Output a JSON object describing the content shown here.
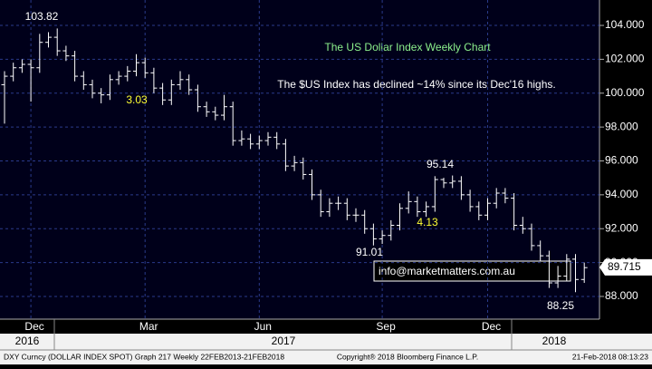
{
  "chart_data": {
    "type": "ohlc",
    "title": "The US Dollar Index Weekly Chart",
    "subtitle": "The $US Index has declined ~14% since its Dec'16 highs.",
    "categories": [
      null,
      null,
      null,
      "Dec",
      null,
      null,
      null,
      null,
      null,
      null,
      null,
      null,
      null,
      null,
      null,
      null,
      "Mar",
      null,
      null,
      null,
      null,
      null,
      null,
      null,
      null,
      null,
      null,
      null,
      null,
      "Jun",
      null,
      null,
      null,
      null,
      null,
      null,
      null,
      null,
      null,
      null,
      null,
      null,
      null,
      "Sep",
      null,
      null,
      null,
      null,
      null,
      null,
      null,
      null,
      null,
      null,
      null,
      "Dec",
      null,
      null,
      null,
      null,
      null,
      null,
      null,
      null,
      null,
      null,
      null
    ],
    "years": [
      "2016",
      "2017",
      "2018"
    ],
    "open": [
      100.5,
      101.0,
      101.5,
      101.7,
      101.5,
      103.0,
      103.3,
      102.5,
      102.2,
      101.0,
      100.5,
      100.0,
      99.9,
      100.8,
      101.0,
      101.3,
      101.8,
      101.2,
      100.3,
      99.6,
      100.5,
      100.8,
      100.2,
      99.2,
      98.9,
      98.7,
      99.2,
      97.2,
      97.3,
      97.0,
      97.2,
      97.4,
      97.0,
      95.7,
      95.9,
      95.2,
      94.0,
      93.0,
      93.5,
      93.5,
      92.8,
      92.8,
      92.0,
      91.4,
      91.6,
      92.2,
      93.2,
      93.6,
      93.0,
      93.3,
      94.9,
      94.7,
      94.8,
      94.0,
      93.3,
      92.8,
      93.5,
      94.1,
      93.8,
      92.2,
      92.0,
      91.0,
      90.4,
      88.8,
      89.2,
      90.2,
      89.0
    ],
    "high": [
      101.3,
      101.8,
      102.0,
      102.0,
      103.5,
      103.6,
      103.82,
      102.8,
      102.5,
      101.3,
      100.8,
      100.3,
      101.1,
      101.3,
      101.6,
      102.3,
      102.1,
      101.5,
      100.6,
      100.8,
      101.3,
      101.1,
      100.5,
      99.5,
      99.2,
      99.9,
      99.5,
      97.8,
      97.6,
      97.5,
      97.7,
      97.7,
      97.3,
      96.3,
      96.2,
      95.5,
      94.3,
      93.8,
      93.9,
      93.8,
      93.2,
      93.1,
      92.3,
      91.9,
      92.5,
      93.5,
      94.2,
      93.9,
      93.6,
      95.1,
      95.0,
      95.14,
      95.1,
      94.3,
      93.6,
      93.8,
      94.4,
      94.4,
      94.1,
      92.7,
      92.3,
      91.3,
      90.7,
      89.8,
      90.5,
      90.5,
      90.0
    ],
    "low": [
      98.2,
      100.7,
      101.2,
      99.5,
      101.2,
      102.7,
      102.2,
      101.9,
      100.7,
      100.2,
      99.7,
      99.4,
      99.6,
      100.5,
      100.7,
      101.0,
      100.9,
      100.0,
      99.3,
      99.3,
      100.2,
      99.9,
      98.9,
      98.6,
      98.4,
      98.4,
      96.9,
      96.9,
      96.7,
      96.7,
      96.9,
      96.7,
      95.4,
      95.4,
      94.9,
      93.7,
      92.7,
      92.7,
      93.1,
      92.5,
      92.4,
      91.7,
      91.01,
      91.1,
      91.3,
      91.9,
      92.9,
      92.7,
      92.7,
      93.0,
      94.4,
      94.4,
      93.7,
      93.0,
      92.5,
      92.5,
      93.2,
      93.5,
      91.9,
      91.7,
      90.7,
      90.1,
      88.5,
      88.5,
      88.9,
      88.25,
      88.8
    ],
    "close": [
      101.0,
      101.5,
      101.7,
      101.5,
      103.0,
      103.3,
      102.5,
      102.2,
      101.0,
      100.5,
      100.0,
      99.9,
      100.8,
      101.0,
      101.3,
      101.8,
      101.2,
      100.3,
      99.6,
      100.5,
      100.8,
      100.2,
      99.2,
      98.9,
      98.7,
      99.2,
      97.2,
      97.3,
      97.0,
      97.2,
      97.4,
      97.0,
      95.7,
      95.9,
      95.2,
      94.0,
      93.0,
      93.5,
      93.5,
      92.8,
      92.8,
      92.0,
      91.4,
      91.6,
      92.2,
      93.2,
      93.6,
      93.0,
      93.3,
      94.9,
      94.7,
      94.8,
      94.0,
      93.3,
      92.8,
      93.5,
      94.1,
      93.8,
      92.2,
      92.0,
      91.0,
      90.4,
      88.8,
      89.2,
      90.2,
      89.0,
      89.7
    ],
    "color": "#ffffff",
    "last_price": 89.715,
    "ylim": [
      86.66,
      105.5
    ],
    "yticks": [
      {
        "value": 88,
        "label": "88.000"
      },
      {
        "value": 90,
        "label": "90.000"
      },
      {
        "value": 92,
        "label": "92.000"
      },
      {
        "value": 94,
        "label": "94.000"
      },
      {
        "value": 96,
        "label": "96.000"
      },
      {
        "value": 98,
        "label": "98.000"
      },
      {
        "value": 100,
        "label": "100.000"
      },
      {
        "value": 102,
        "label": "102.000"
      },
      {
        "value": 104,
        "label": "104.000"
      }
    ],
    "grid": true,
    "annotations": [
      {
        "text": "103.82",
        "color": "#ffffff"
      },
      {
        "text": "3.03",
        "color": "#ffff33"
      },
      {
        "text": "91.01",
        "color": "#ffffff"
      },
      {
        "text": "95.14",
        "color": "#ffffff"
      },
      {
        "text": "4.13",
        "color": "#ffff33"
      },
      {
        "text": "88.25",
        "color": "#ffffff"
      }
    ],
    "title_color": "#8cf08c",
    "email": "info@marketmatters.com.au",
    "footer": {
      "left": "DXY Curncy (DOLLAR INDEX SPOT) Graph 217  Weekly 22FEB2013-21FEB2018",
      "center": "Copyright® 2018 Bloomberg Finance L.P.",
      "right": "21-Feb-2018 08:13:23"
    }
  }
}
